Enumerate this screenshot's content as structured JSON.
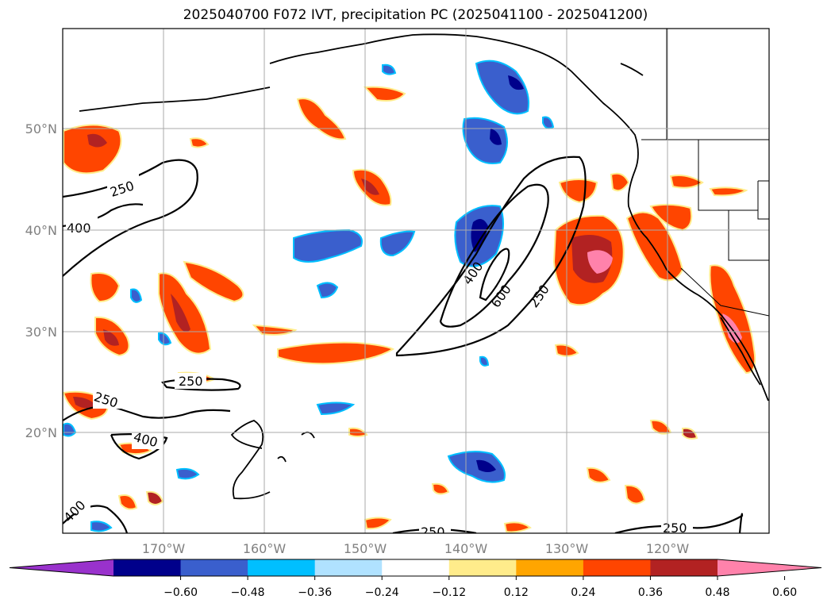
{
  "title": "2025040700 F072 IVT, precipitation PC (2025041100 - 2025041200)",
  "axes": {
    "lat_labels": [
      "50°N",
      "40°N",
      "30°N",
      "20°N"
    ],
    "lon_labels": [
      "170°W",
      "160°W",
      "150°W",
      "140°W",
      "130°W",
      "120°W"
    ]
  },
  "colorbar": {
    "colors": [
      "#9932cc",
      "#00008b",
      "#3a5fcd",
      "#00bfff",
      "#b0e2ff",
      "#ffffff",
      "#ffec8b",
      "#ffa500",
      "#ff4500",
      "#b22222",
      "#ff82ab"
    ],
    "ticks": [
      "−0.60",
      "−0.48",
      "−0.36",
      "−0.24",
      "−0.12",
      "0.12",
      "0.24",
      "0.36",
      "0.48",
      "0.60"
    ]
  },
  "contour_labels": [
    "250",
    "400",
    "250",
    "250",
    "400",
    "400",
    "600",
    "250",
    "400",
    "250",
    "250"
  ]
}
